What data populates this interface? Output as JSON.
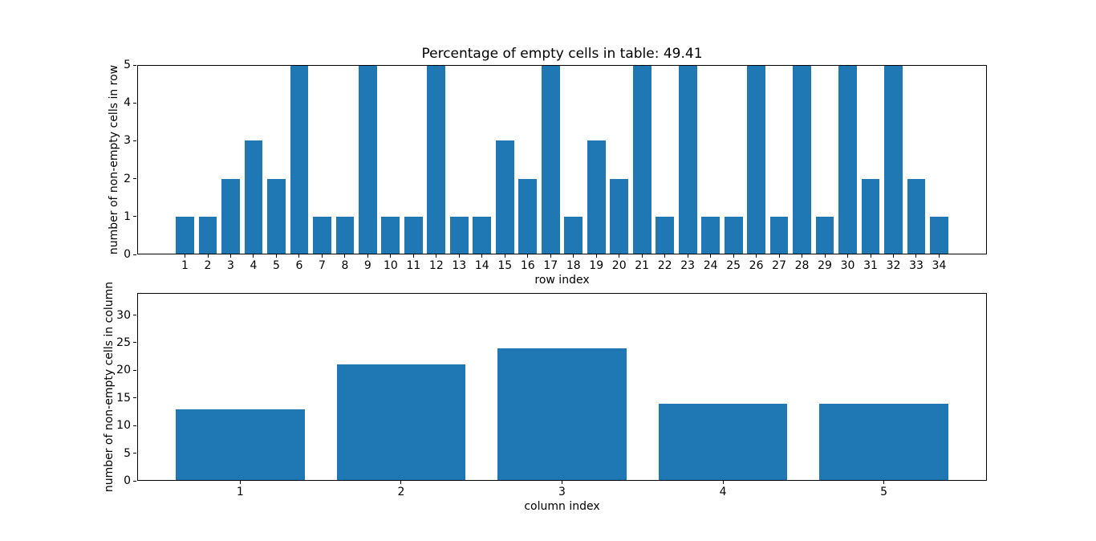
{
  "figure": {
    "background": "#ffffff",
    "bar_color": "#1f77b4",
    "axis_color": "#000000"
  },
  "chart_data": [
    {
      "type": "bar",
      "title": "Percentage of empty cells in table: 49.41",
      "xlabel": "row index",
      "ylabel": "number of non-empty cells in row",
      "categories": [
        1,
        2,
        3,
        4,
        5,
        6,
        7,
        8,
        9,
        10,
        11,
        12,
        13,
        14,
        15,
        16,
        17,
        18,
        19,
        20,
        21,
        22,
        23,
        24,
        25,
        26,
        27,
        28,
        29,
        30,
        31,
        32,
        33,
        34
      ],
      "values": [
        1,
        1,
        2,
        3,
        2,
        5,
        1,
        1,
        5,
        1,
        1,
        5,
        1,
        1,
        3,
        2,
        5,
        1,
        3,
        2,
        5,
        1,
        5,
        1,
        1,
        5,
        1,
        5,
        1,
        5,
        2,
        5,
        2,
        1
      ],
      "ylim": [
        0,
        5
      ],
      "yticks": [
        0,
        1,
        2,
        3,
        4,
        5
      ],
      "grid": false,
      "legend": null
    },
    {
      "type": "bar",
      "title": "",
      "xlabel": "column index",
      "ylabel": "number of non-empty cells in column",
      "categories": [
        1,
        2,
        3,
        4,
        5
      ],
      "values": [
        13,
        21,
        24,
        14,
        14
      ],
      "ylim": [
        0,
        34
      ],
      "yticks": [
        0,
        5,
        10,
        15,
        20,
        25,
        30
      ],
      "grid": false,
      "legend": null
    }
  ]
}
